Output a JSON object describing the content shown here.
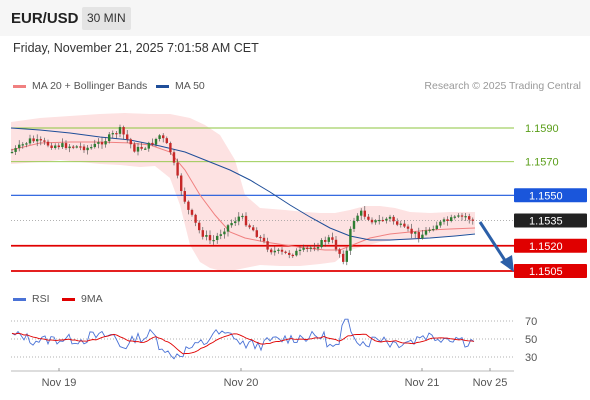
{
  "header": {
    "pair": "EUR/USD",
    "timeframe": "30 MIN"
  },
  "timestamp": "Friday, November 21, 2025 7:01:58 AM CET",
  "legend": {
    "ma20": {
      "label": "MA 20 + Bollinger Bands",
      "color": "#f08080"
    },
    "ma50": {
      "label": "MA 50",
      "color": "#1f4e99"
    }
  },
  "research": "Research © 2025 Trading Central",
  "rsi_legend": {
    "rsi": {
      "label": "RSI",
      "color": "#4a72d6"
    },
    "ma9": {
      "label": "9MA",
      "color": "#e00000"
    }
  },
  "chart_data": {
    "type": "candlestick",
    "price_range": [
      1.4987,
      1.161
    ],
    "levels": [
      {
        "label": "1.1590",
        "value": 1.159,
        "kind": "resistance",
        "color": "#8dc63f"
      },
      {
        "label": "1.1570",
        "value": 1.157,
        "kind": "resistance",
        "color": "#8dc63f"
      },
      {
        "label": "1.1550",
        "value": 1.155,
        "kind": "pivot",
        "color": "#1a56db"
      },
      {
        "label": "1.1535",
        "value": 1.1535,
        "kind": "last",
        "color": "#222222"
      },
      {
        "label": "1.1520",
        "value": 1.152,
        "kind": "support",
        "color": "#e00000"
      },
      {
        "label": "1.1505",
        "value": 1.1505,
        "kind": "support",
        "color": "#e00000"
      }
    ],
    "x_labels": [
      "Nov 19",
      "Nov 20",
      "Nov 21",
      "Nov 25"
    ],
    "rsi": {
      "ticks": [
        "70",
        "50",
        "30"
      ],
      "range": [
        20,
        80
      ]
    }
  }
}
